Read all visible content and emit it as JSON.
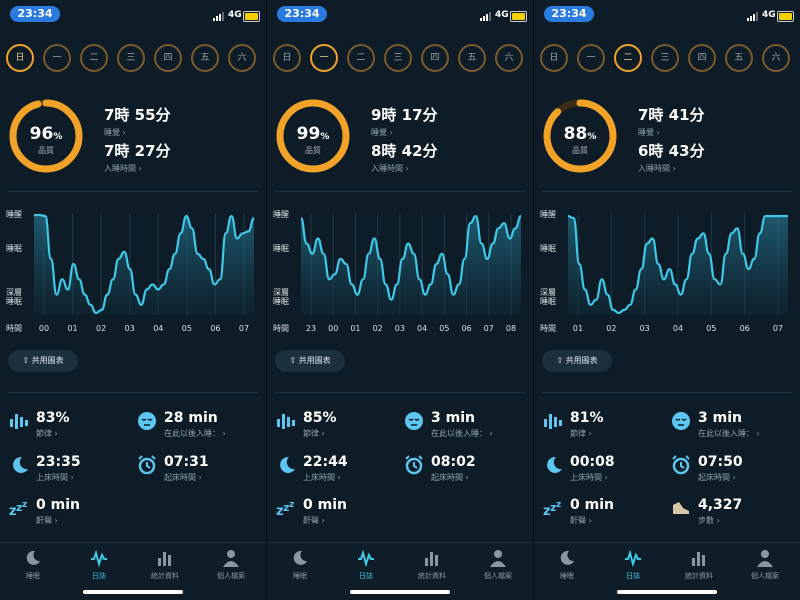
{
  "colors": {
    "accent": "#3ec9e8",
    "ring": "#f0a328",
    "background": "#0e1c27"
  },
  "day_labels": [
    "日",
    "一",
    "二",
    "三",
    "四",
    "五",
    "六"
  ],
  "chart_y_labels": {
    "awake": "睡醒",
    "sleep": "睡眠",
    "deep": "深層\n睡眠",
    "time": "時間"
  },
  "labels": {
    "quality": "品質",
    "asleep": "睡覺 ›",
    "time_to_sleep": "入睡時間 ›",
    "share": "共用圖表",
    "regularity": "節律 ›",
    "fell_asleep_after": "在此以後入睡： ›",
    "bedtime": "上床時間 ›",
    "wake_time": "起床時間 ›",
    "snore": "鼾聲 ›",
    "steps": "步數 ›"
  },
  "tabs": [
    {
      "label": "睡眠",
      "icon": "moon-icon"
    },
    {
      "label": "日誌",
      "icon": "wave-icon"
    },
    {
      "label": "統計資料",
      "icon": "bar-chart-icon"
    },
    {
      "label": "個人檔案",
      "icon": "person-icon"
    }
  ],
  "panels": [
    {
      "status": {
        "time": "23:34",
        "network": "4G"
      },
      "active_day": 0,
      "quality": {
        "value": "96",
        "unit": "%",
        "fraction": 0.96
      },
      "asleep": "7時 55分",
      "time_to_sleep": "7時 27分",
      "chart_data": {
        "type": "area",
        "x_ticks": [
          "00",
          "01",
          "02",
          "03",
          "04",
          "05",
          "06",
          "07"
        ],
        "values": [
          0.98,
          0.98,
          0.97,
          0.55,
          0.2,
          0.35,
          0.25,
          0.5,
          0.35,
          0.2,
          0.1,
          0.02,
          0.05,
          0.2,
          0.35,
          0.55,
          0.62,
          0.45,
          0.2,
          0.1,
          0.25,
          0.3,
          0.25,
          0.3,
          0.45,
          0.6,
          0.8,
          0.97,
          0.85,
          0.6,
          0.55,
          0.45,
          0.3,
          0.35,
          0.8,
          0.97,
          0.75,
          0.8,
          0.82,
          0.95
        ]
      },
      "metrics": {
        "regularity": "83%",
        "fell_asleep_after": "28 min",
        "bedtime": "23:35",
        "wake_time": "07:31",
        "snore": "0 min",
        "fourth": {
          "value": "07:31"
        }
      },
      "right3": {
        "kind": "alarm",
        "value": "07:31"
      }
    },
    {
      "status": {
        "time": "23:34",
        "network": "4G"
      },
      "active_day": 1,
      "quality": {
        "value": "99",
        "unit": "%",
        "fraction": 0.99
      },
      "asleep": "9時 17分",
      "time_to_sleep": "8時 42分",
      "chart_data": {
        "type": "area",
        "x_ticks": [
          "23",
          "00",
          "01",
          "02",
          "03",
          "04",
          "05",
          "06",
          "07",
          "08"
        ],
        "values": [
          0.95,
          0.7,
          0.6,
          0.75,
          0.6,
          0.35,
          0.4,
          0.55,
          0.5,
          0.3,
          0.2,
          0.35,
          0.6,
          0.75,
          0.55,
          0.3,
          0.15,
          0.3,
          0.55,
          0.7,
          0.6,
          0.35,
          0.2,
          0.3,
          0.5,
          0.6,
          0.4,
          0.2,
          0.3,
          0.55,
          0.9,
          0.97,
          0.7,
          0.55,
          0.7,
          0.85,
          0.9,
          0.75,
          0.85,
          0.97
        ]
      },
      "metrics": {
        "regularity": "85%",
        "fell_asleep_after": "3 min",
        "bedtime": "22:44",
        "wake_time": "08:02",
        "snore": "0 min"
      }
    },
    {
      "status": {
        "time": "23:34",
        "network": "4G"
      },
      "active_day": 2,
      "quality": {
        "value": "88",
        "unit": "%",
        "fraction": 0.88
      },
      "asleep": "7時 41分",
      "time_to_sleep": "6時 43分",
      "chart_data": {
        "type": "area",
        "x_ticks": [
          "01",
          "02",
          "03",
          "04",
          "05",
          "06",
          "07"
        ],
        "values": [
          0.97,
          0.95,
          0.5,
          0.25,
          0.1,
          0.15,
          0.35,
          0.2,
          0.05,
          0.02,
          0.05,
          0.1,
          0.25,
          0.45,
          0.7,
          0.75,
          0.5,
          0.35,
          0.45,
          0.3,
          0.2,
          0.35,
          0.6,
          0.75,
          0.8,
          0.6,
          0.35,
          0.3,
          0.6,
          0.8,
          0.85,
          0.6,
          0.45,
          0.55,
          0.8,
          0.97,
          0.97,
          0.97,
          0.97,
          0.97
        ]
      },
      "metrics": {
        "regularity": "81%",
        "fell_asleep_after": "3 min",
        "bedtime": "00:08",
        "wake_time": "07:50",
        "snore": "0 min",
        "steps": "4,327"
      }
    }
  ]
}
